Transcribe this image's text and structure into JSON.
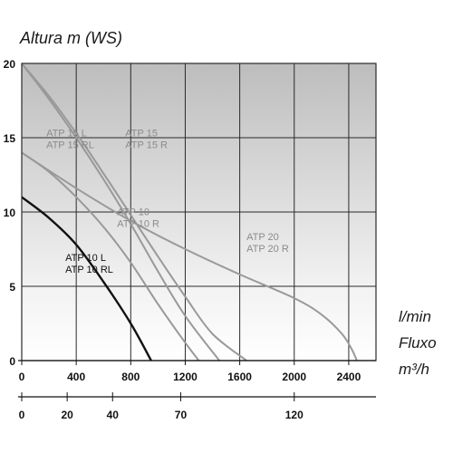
{
  "chart_data": {
    "type": "line",
    "ylabel": "Altura m (WS)",
    "unit_labels": [
      "l/min",
      "Fluxo",
      "m³/h"
    ],
    "ylim": [
      0,
      20
    ],
    "xlim_lmin": [
      0,
      2600
    ],
    "y_ticks": [
      "0",
      "5",
      "10",
      "15",
      "20"
    ],
    "x_ticks_lmin": [
      {
        "value": 0,
        "label": "0"
      },
      {
        "value": 400,
        "label": "400"
      },
      {
        "value": 800,
        "label": "800"
      },
      {
        "value": 1200,
        "label": "1200"
      },
      {
        "value": 1600,
        "label": "1600"
      },
      {
        "value": 2000,
        "label": "2000"
      },
      {
        "value": 2400,
        "label": "2400"
      }
    ],
    "x_ticks_m3h": [
      {
        "value": 0,
        "label": "0"
      },
      {
        "value": 20,
        "label": "20"
      },
      {
        "value": 40,
        "label": "40"
      },
      {
        "value": 70,
        "label": "70"
      },
      {
        "value": 120,
        "label": "120"
      }
    ],
    "grid": true,
    "series": [
      {
        "name": "ATP 10 L / ATP 10 RL",
        "label_lines": [
          "ATP 10 L",
          "ATP 10 RL"
        ],
        "label_at": [
          320,
          6.7
        ],
        "color": "#111111",
        "x": [
          0,
          200,
          400,
          600,
          800,
          950
        ],
        "y": [
          11,
          9.6,
          7.8,
          5.3,
          2.5,
          0
        ]
      },
      {
        "name": "ATP 10 / ATP 10 R",
        "label_lines": [
          "ATP 10",
          "ATP 10 R"
        ],
        "label_at": [
          700,
          9.8
        ],
        "color": "#999999",
        "x": [
          0,
          200,
          400,
          600,
          800,
          1000,
          1200,
          1300
        ],
        "y": [
          14,
          12.7,
          11,
          9,
          6.6,
          3.8,
          1.2,
          0
        ]
      },
      {
        "name": "ATP 15 L / ATP 15 RL",
        "label_lines": [
          "ATP 15 L",
          "ATP 15 RL"
        ],
        "label_at": [
          180,
          15.1
        ],
        "color": "#999999",
        "x": [
          0,
          200,
          400,
          600,
          800,
          1000,
          1200,
          1450
        ],
        "y": [
          20,
          17.6,
          15,
          12.2,
          9.2,
          6,
          3,
          0
        ]
      },
      {
        "name": "ATP 15 / ATP 15 R",
        "label_lines": [
          "ATP 15",
          "ATP 15 R"
        ],
        "label_at": [
          760,
          15.1
        ],
        "color": "#999999",
        "x": [
          0,
          200,
          400,
          600,
          800,
          1000,
          1200,
          1400,
          1650
        ],
        "y": [
          20,
          17.8,
          15.3,
          12.6,
          9.8,
          7,
          4.3,
          1.8,
          0
        ]
      },
      {
        "name": "ATP 20 / ATP 20 R",
        "label_lines": [
          "ATP 20",
          "ATP 20 R"
        ],
        "label_at": [
          1650,
          8.1
        ],
        "color": "#999999",
        "x": [
          0,
          400,
          800,
          1200,
          1600,
          2000,
          2200,
          2350,
          2420,
          2460
        ],
        "y": [
          14,
          11.6,
          9.4,
          7.5,
          5.8,
          4.2,
          3.1,
          1.8,
          0.8,
          0
        ]
      }
    ]
  }
}
